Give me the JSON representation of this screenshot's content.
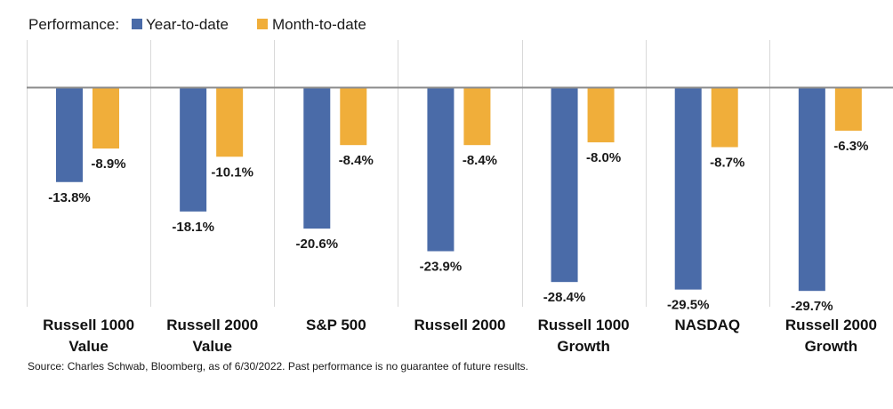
{
  "legend": {
    "title": "Performance:",
    "items": [
      {
        "label": "Year-to-date",
        "color": "#4a6ba8"
      },
      {
        "label": "Month-to-date",
        "color": "#f0ae3a"
      }
    ]
  },
  "source": "Source: Charles Schwab, Bloomberg, as of 6/30/2022.  Past performance is no guarantee of future results.",
  "chart_data": {
    "type": "bar",
    "categories": [
      [
        "Russell 1000",
        "Value"
      ],
      [
        "Russell 2000",
        "Value"
      ],
      [
        "S&P 500"
      ],
      [
        "Russell 2000"
      ],
      [
        "Russell 1000",
        "Growth"
      ],
      [
        "NASDAQ"
      ],
      [
        "Russell 2000",
        "Growth"
      ]
    ],
    "series": [
      {
        "name": "Year-to-date",
        "color": "#4a6ba8",
        "values": [
          -13.8,
          -18.1,
          -20.6,
          -23.9,
          -28.4,
          -29.5,
          -29.7
        ],
        "labels": [
          "-13.8%",
          "-18.1%",
          "-20.6%",
          "-23.9%",
          "-28.4%",
          "-29.5%",
          "-29.7%"
        ]
      },
      {
        "name": "Month-to-date",
        "color": "#f0ae3a",
        "values": [
          -8.9,
          -10.1,
          -8.4,
          -8.4,
          -8.0,
          -8.7,
          -6.3
        ],
        "labels": [
          "-8.9%",
          "-10.1%",
          "-8.4%",
          "-8.4%",
          "-8.0%",
          "-8.7%",
          "-6.3%"
        ]
      }
    ],
    "ylim": [
      -31,
      0
    ],
    "grid": false,
    "legend_position": "top-left"
  }
}
